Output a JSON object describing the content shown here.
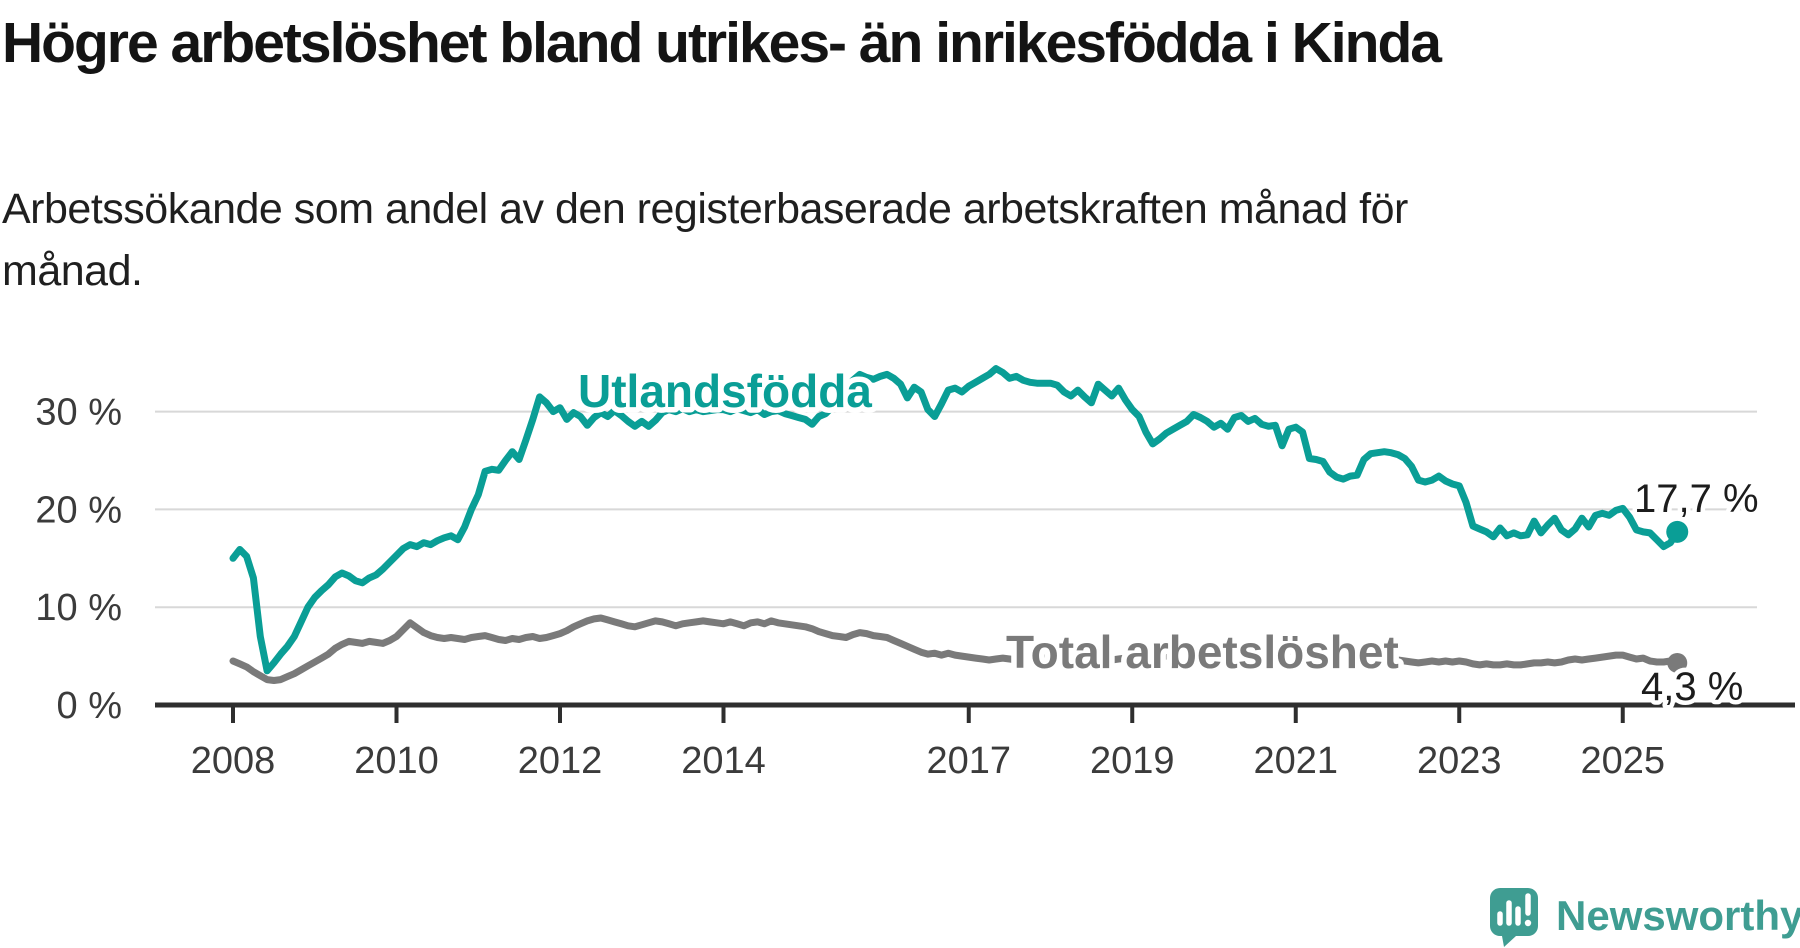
{
  "header": {
    "title": "Högre arbetslöshet bland utrikes- än inrikesfödda i Kinda",
    "subtitle_line1": "Arbetssökande som andel av den registerbaserade arbetskraften månad för",
    "subtitle_line2": "månad."
  },
  "branding": {
    "name": "Newsworthy",
    "logo_color": "#3F9D92"
  },
  "chart_data": {
    "type": "line",
    "title": "Högre arbetslöshet bland utrikes- än inrikesfödda i Kinda",
    "subtitle": "Arbetssökande som andel av den registerbaserade arbetskraften månad för månad.",
    "unit": "percent",
    "x_start_year": 2008,
    "x_step_months": 1,
    "ylim": [
      0,
      36
    ],
    "grid": true,
    "colors": {
      "accent_teal": "#0A9E96",
      "neutral_gray": "#7A7A7A",
      "axis": "#2E2E2E",
      "gridline": "#D8D8D8"
    },
    "y_ticks": [
      {
        "value": 0,
        "label": "0 %"
      },
      {
        "value": 10,
        "label": "10 %"
      },
      {
        "value": 20,
        "label": "20 %"
      },
      {
        "value": 30,
        "label": "30 %"
      }
    ],
    "x_ticks": [
      {
        "value": 2008,
        "label": "2008"
      },
      {
        "value": 2010,
        "label": "2010"
      },
      {
        "value": 2012,
        "label": "2012"
      },
      {
        "value": 2014,
        "label": "2014"
      },
      {
        "value": 2017,
        "label": "2017"
      },
      {
        "value": 2019,
        "label": "2019"
      },
      {
        "value": 2021,
        "label": "2021"
      },
      {
        "value": 2023,
        "label": "2023"
      },
      {
        "value": 2025,
        "label": "2025"
      }
    ],
    "series": [
      {
        "name": "Utlandsfödda",
        "color": "#0A9E96",
        "end_label": "17,7 %",
        "end_value": 17.7,
        "values": [
          15.0,
          15.9,
          15.2,
          13.0,
          7.0,
          3.5,
          4.3,
          5.2,
          6.0,
          7.0,
          8.5,
          10.0,
          11.0,
          11.7,
          12.3,
          13.1,
          13.5,
          13.2,
          12.7,
          12.5,
          13.0,
          13.3,
          13.9,
          14.6,
          15.3,
          16.0,
          16.4,
          16.2,
          16.6,
          16.4,
          16.8,
          17.1,
          17.3,
          16.9,
          18.2,
          20.0,
          21.5,
          23.9,
          24.1,
          24.0,
          25.0,
          25.9,
          25.1,
          27.1,
          29.2,
          31.5,
          30.9,
          30.0,
          30.4,
          29.2,
          29.9,
          29.5,
          28.6,
          29.4,
          29.9,
          29.5,
          30.1,
          29.6,
          29.0,
          28.5,
          29.0,
          28.5,
          29.1,
          29.9,
          30.2,
          30.0,
          30.3,
          30.0,
          30.2,
          30.0,
          30.1,
          30.2,
          30.2,
          30.0,
          30.3,
          30.1,
          29.9,
          30.2,
          29.7,
          30.0,
          30.1,
          29.8,
          29.6,
          29.4,
          29.2,
          28.7,
          29.5,
          29.8,
          30.5,
          31.3,
          32.3,
          33.2,
          33.8,
          33.5,
          33.3,
          33.6,
          33.8,
          33.4,
          32.8,
          31.4,
          32.5,
          32.0,
          30.2,
          29.5,
          30.8,
          32.2,
          32.4,
          32.0,
          32.6,
          33.0,
          33.4,
          33.8,
          34.4,
          34.0,
          33.4,
          33.6,
          33.2,
          33.0,
          32.9,
          32.9,
          32.9,
          32.7,
          32.0,
          31.6,
          32.2,
          31.5,
          30.9,
          32.8,
          32.2,
          31.6,
          32.4,
          31.2,
          30.2,
          29.5,
          27.9,
          26.7,
          27.2,
          27.8,
          28.2,
          28.6,
          29.0,
          29.7,
          29.4,
          29.0,
          28.4,
          28.8,
          28.2,
          29.4,
          29.6,
          29.0,
          29.3,
          28.7,
          28.5,
          28.6,
          26.5,
          28.2,
          28.4,
          27.9,
          25.2,
          25.1,
          24.9,
          23.8,
          23.3,
          23.1,
          23.4,
          23.5,
          25.1,
          25.7,
          25.8,
          25.9,
          25.8,
          25.6,
          25.2,
          24.4,
          23.0,
          22.8,
          23.0,
          23.4,
          22.9,
          22.6,
          22.4,
          20.7,
          18.3,
          18.0,
          17.7,
          17.2,
          18.1,
          17.3,
          17.6,
          17.3,
          17.4,
          18.8,
          17.6,
          18.4,
          19.1,
          17.9,
          17.4,
          18.0,
          19.1,
          18.2,
          19.4,
          19.6,
          19.4,
          19.9,
          20.1,
          19.2,
          17.9,
          17.7,
          17.6,
          16.9,
          16.2,
          16.6,
          17.7
        ]
      },
      {
        "name": "Total arbetslöshet",
        "color": "#7A7A7A",
        "end_label": "4,3 %",
        "end_value": 4.3,
        "values": [
          4.5,
          4.2,
          3.9,
          3.4,
          3.0,
          2.6,
          2.5,
          2.6,
          2.9,
          3.2,
          3.6,
          4.0,
          4.4,
          4.8,
          5.2,
          5.8,
          6.2,
          6.5,
          6.4,
          6.3,
          6.5,
          6.4,
          6.3,
          6.6,
          7.0,
          7.7,
          8.4,
          7.9,
          7.4,
          7.1,
          6.9,
          6.8,
          6.9,
          6.8,
          6.7,
          6.9,
          7.0,
          7.1,
          6.9,
          6.7,
          6.6,
          6.8,
          6.7,
          6.9,
          7.0,
          6.8,
          6.9,
          7.1,
          7.3,
          7.6,
          8.0,
          8.3,
          8.6,
          8.8,
          8.9,
          8.7,
          8.5,
          8.3,
          8.1,
          8.0,
          8.2,
          8.4,
          8.6,
          8.5,
          8.3,
          8.1,
          8.3,
          8.4,
          8.5,
          8.6,
          8.5,
          8.4,
          8.3,
          8.5,
          8.3,
          8.1,
          8.4,
          8.5,
          8.3,
          8.6,
          8.4,
          8.3,
          8.2,
          8.1,
          8.0,
          7.8,
          7.5,
          7.3,
          7.1,
          7.0,
          6.9,
          7.2,
          7.4,
          7.3,
          7.1,
          7.0,
          6.9,
          6.6,
          6.3,
          6.0,
          5.7,
          5.4,
          5.2,
          5.3,
          5.1,
          5.3,
          5.1,
          5.0,
          4.9,
          4.8,
          4.7,
          4.6,
          4.7,
          4.8,
          4.7,
          4.6,
          4.7,
          4.8,
          4.7,
          4.8,
          4.9,
          4.8,
          4.7,
          4.8,
          4.7,
          4.6,
          4.7,
          4.8,
          4.7,
          4.6,
          4.7,
          4.8,
          4.9,
          5.0,
          4.9,
          5.0,
          5.1,
          5.0,
          5.1,
          5.2,
          5.1,
          5.2,
          5.3,
          5.4,
          5.4,
          5.5,
          5.7,
          5.9,
          6.0,
          6.0,
          5.9,
          5.8,
          5.7,
          5.6,
          5.5,
          5.5,
          5.6,
          5.5,
          5.4,
          5.3,
          5.2,
          5.1,
          5.0,
          5.0,
          4.9,
          4.9,
          4.8,
          4.8,
          4.8,
          4.8,
          4.7,
          4.6,
          4.5,
          4.4,
          4.3,
          4.4,
          4.5,
          4.4,
          4.5,
          4.4,
          4.5,
          4.4,
          4.2,
          4.1,
          4.2,
          4.1,
          4.1,
          4.2,
          4.1,
          4.1,
          4.2,
          4.3,
          4.3,
          4.4,
          4.3,
          4.4,
          4.6,
          4.7,
          4.6,
          4.7,
          4.8,
          4.9,
          5.0,
          5.1,
          5.1,
          4.9,
          4.7,
          4.8,
          4.5,
          4.4,
          4.4,
          4.5,
          4.3
        ]
      }
    ]
  }
}
